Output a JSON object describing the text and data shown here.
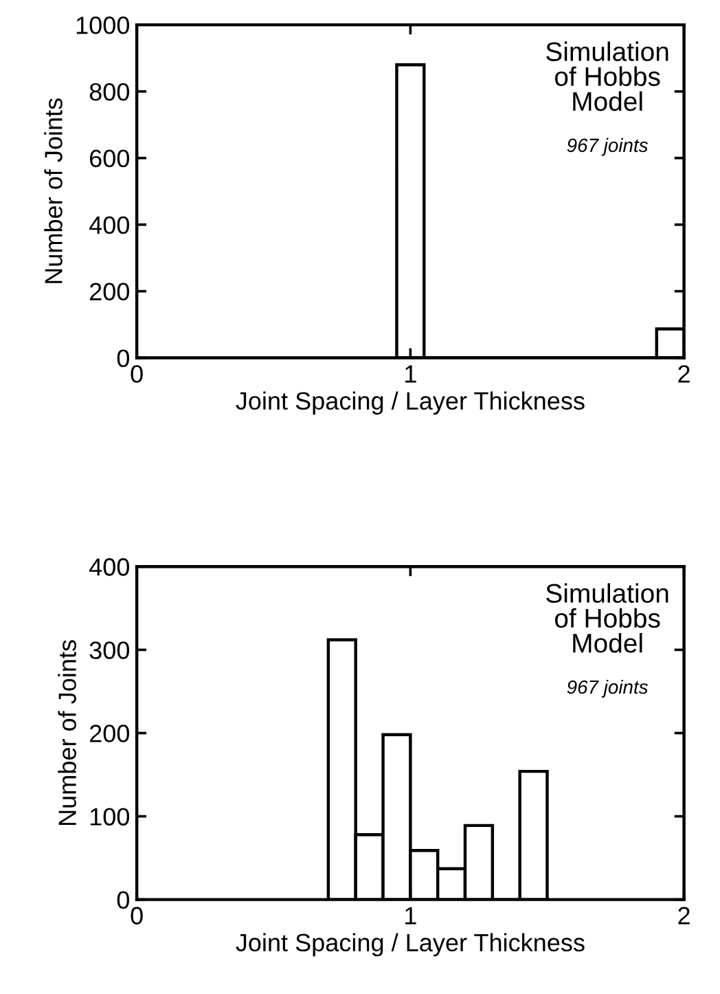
{
  "chart_data": [
    {
      "type": "histogram",
      "bins": [
        0.95,
        1.05,
        1.9,
        2.0
      ],
      "values": [
        880,
        0,
        87
      ],
      "color": "#ffffff",
      "xlabel": "Joint Spacing / Layer Thickness",
      "ylabel": "Number of Joints",
      "xlim": [
        0,
        2
      ],
      "ylim": [
        0,
        1000
      ],
      "xticks": [
        0,
        1,
        2
      ],
      "yticks": [
        0,
        200,
        400,
        600,
        800,
        1000
      ],
      "annotations": [
        "Simulation\nof Hobbs\nModel",
        "967 joints"
      ],
      "grid": false
    },
    {
      "type": "histogram",
      "bins": [
        0.7,
        0.8,
        0.9,
        1.0,
        1.1,
        1.2,
        1.3,
        1.4,
        1.5
      ],
      "values": [
        312,
        78,
        198,
        59,
        37,
        89,
        0,
        154
      ],
      "color": "#ffffff",
      "xlabel": "Joint Spacing / Layer Thickness",
      "ylabel": "Number of Joints",
      "xlim": [
        0,
        2
      ],
      "ylim": [
        0,
        400
      ],
      "xticks": [
        0,
        1,
        2
      ],
      "yticks": [
        0,
        100,
        200,
        300,
        400
      ],
      "annotations": [
        "Simulation\nof Hobbs\nModel",
        "967 joints"
      ],
      "grid": false
    }
  ]
}
